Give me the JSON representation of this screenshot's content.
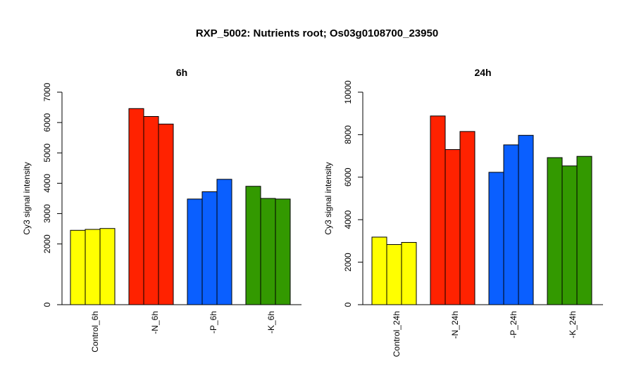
{
  "title": "RXP_5002: Nutrients root; Os03g0108700_23950",
  "chart_data": [
    {
      "type": "bar",
      "title": "6h",
      "ylabel": "Cy3 signal intensity",
      "ylim": [
        0,
        7000
      ],
      "yticks": [
        0,
        2000,
        3000,
        4000,
        5000,
        6000,
        7000
      ],
      "groups": [
        {
          "label": "Control_6h",
          "color": "#ffff00",
          "values": [
            2450,
            2480,
            2510
          ]
        },
        {
          "label": "-N_6h",
          "color": "#ff2200",
          "values": [
            6460,
            6200,
            5950
          ]
        },
        {
          "label": "-P_6h",
          "color": "#0a5fff",
          "values": [
            3480,
            3720,
            4130
          ]
        },
        {
          "label": "-K_6h",
          "color": "#339900",
          "values": [
            3900,
            3500,
            3480
          ]
        }
      ]
    },
    {
      "type": "bar",
      "title": "24h",
      "ylabel": "Cy3 signal intensity",
      "ylim": [
        0,
        10000
      ],
      "yticks": [
        0,
        2000,
        4000,
        6000,
        8000,
        10000
      ],
      "groups": [
        {
          "label": "Control_24h",
          "color": "#ffff00",
          "values": [
            3180,
            2830,
            2930
          ]
        },
        {
          "label": "-N_24h",
          "color": "#ff2200",
          "values": [
            8880,
            7300,
            8150
          ]
        },
        {
          "label": "-P_24h",
          "color": "#0a5fff",
          "values": [
            6230,
            7520,
            7970
          ]
        },
        {
          "label": "-K_24h",
          "color": "#339900",
          "values": [
            6920,
            6530,
            6980
          ]
        }
      ]
    }
  ]
}
